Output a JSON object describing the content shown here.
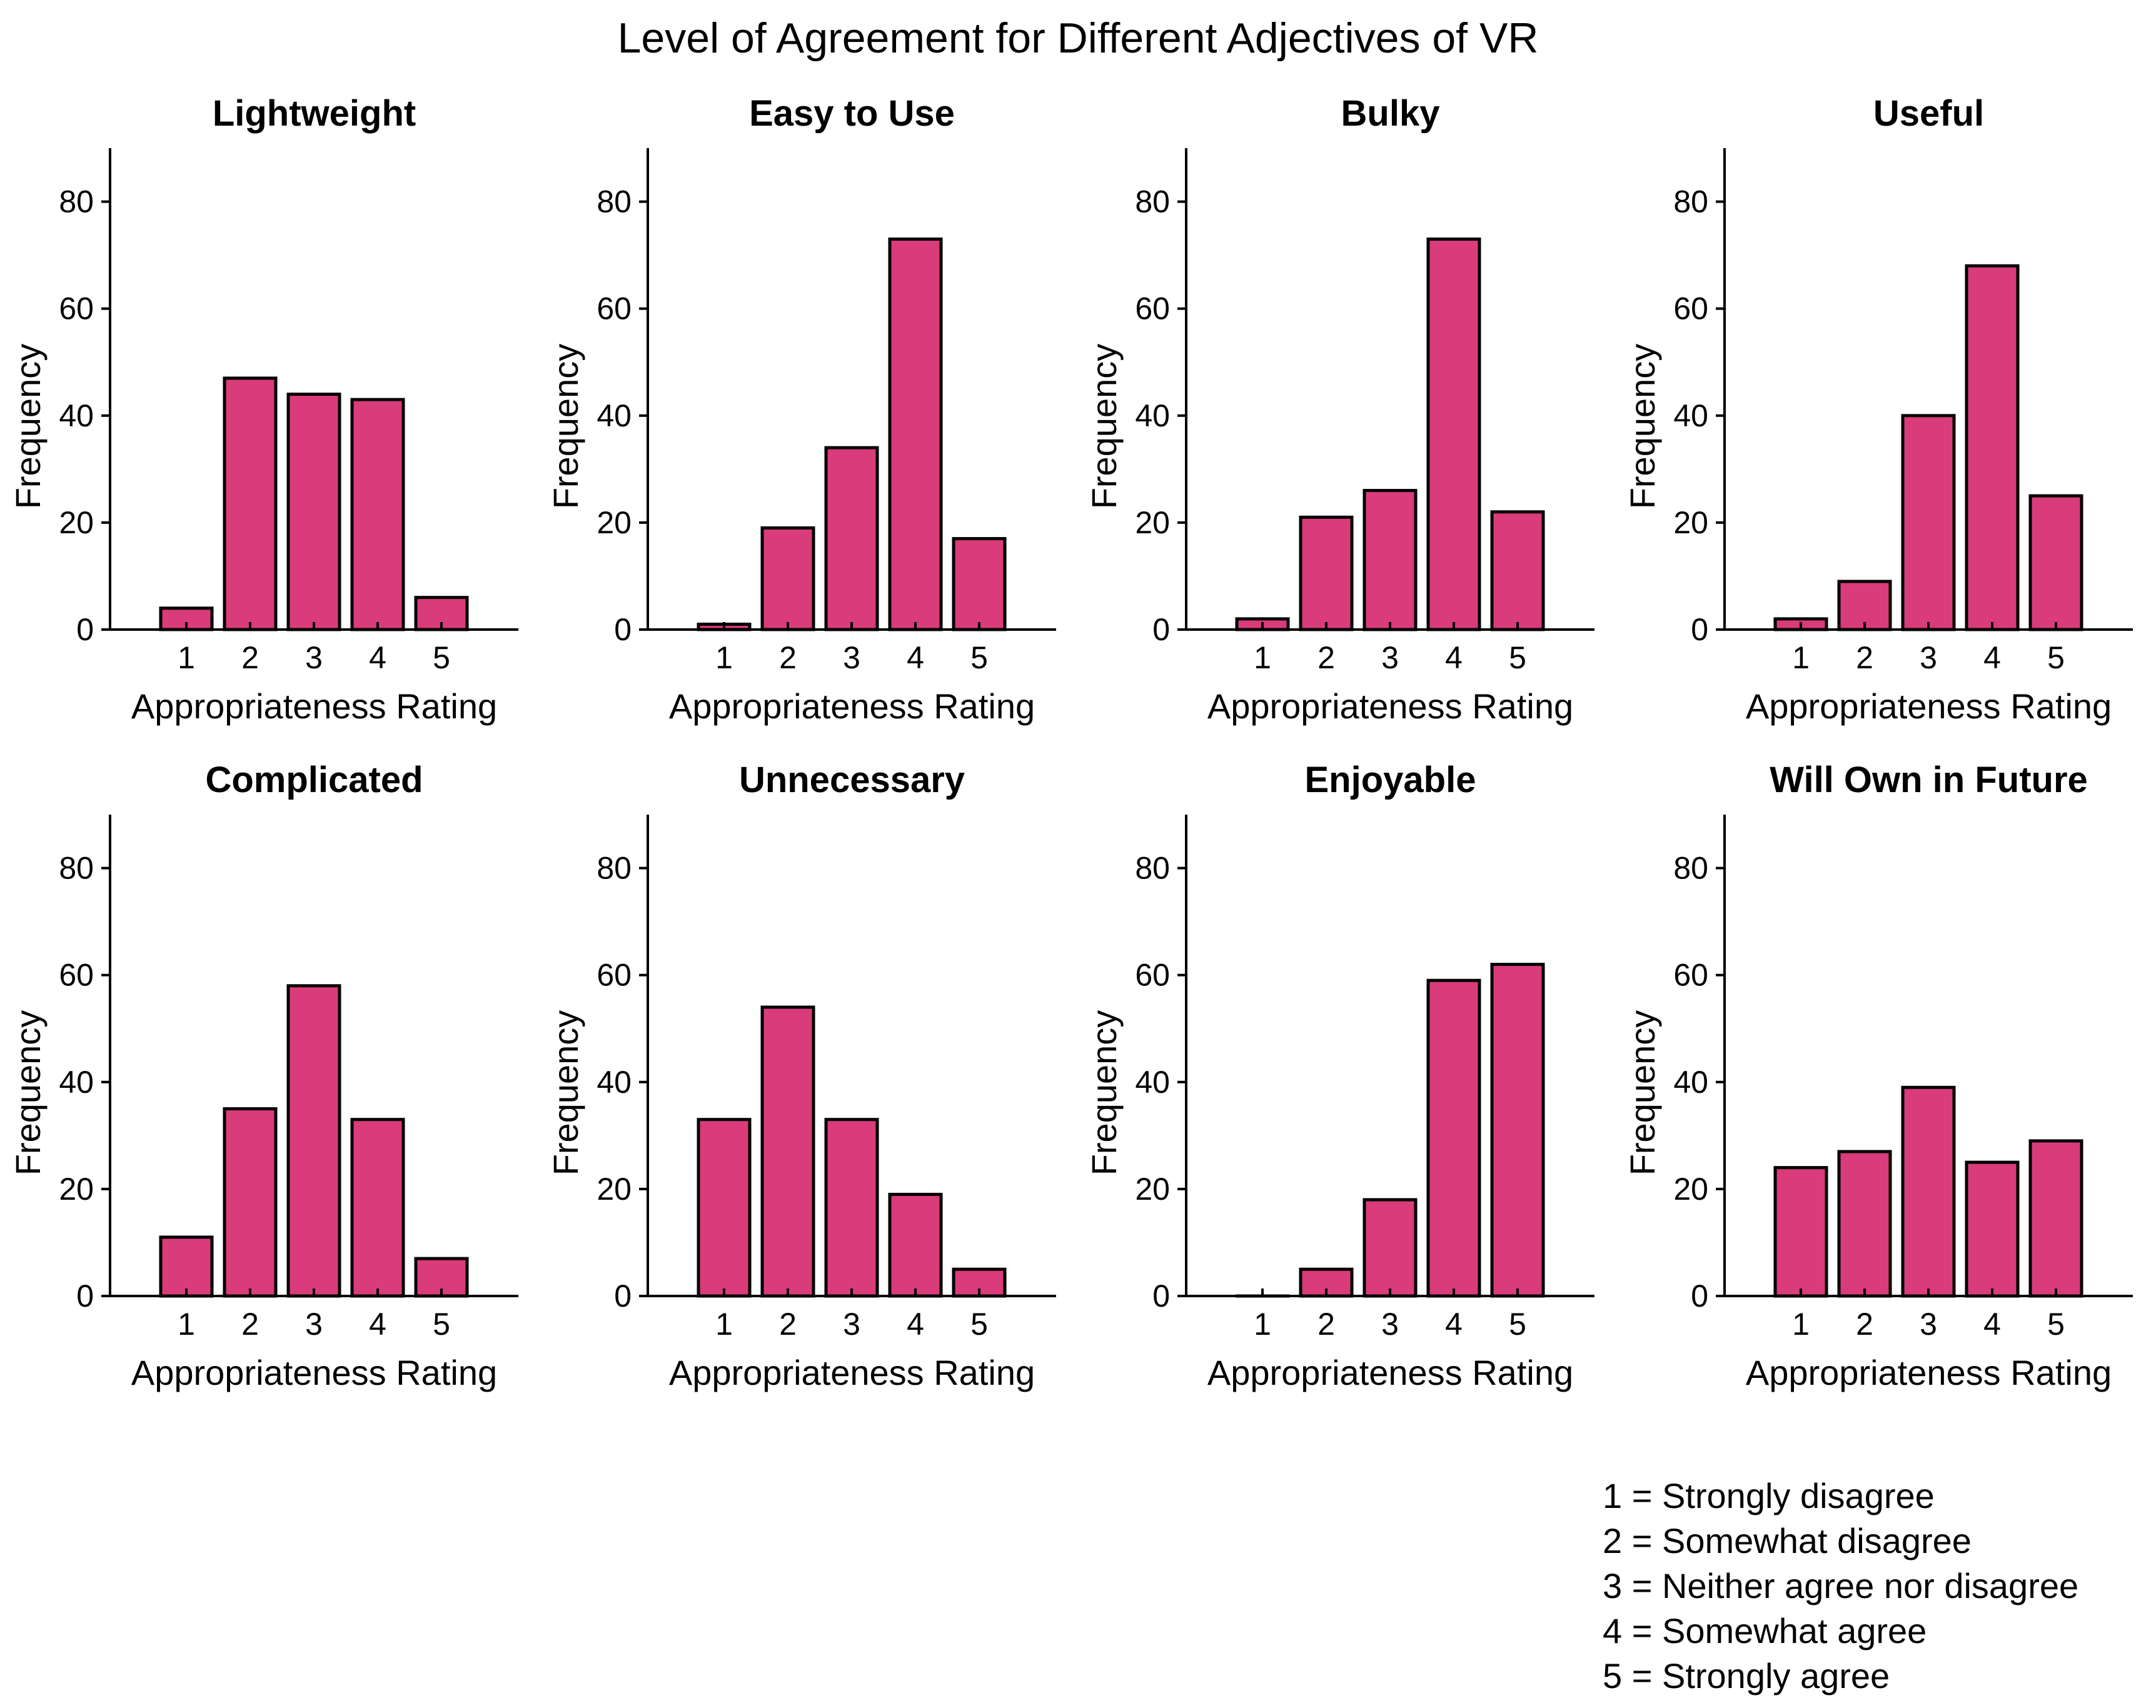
{
  "chart_data": {
    "type": "bar",
    "title": "Level of Agreement for Different Adjectives of VR",
    "bar_color": "#D93B7B",
    "edge_color": "#000000",
    "categories": [
      "1",
      "2",
      "3",
      "4",
      "5"
    ],
    "xlabel": "Appropriateness Rating",
    "ylabel": "Frequency",
    "ylim": [
      0,
      90
    ],
    "yticks": [
      0,
      20,
      40,
      60,
      80
    ],
    "panels": [
      {
        "title": "Lightweight",
        "values": [
          4,
          47,
          44,
          43,
          6
        ]
      },
      {
        "title": "Easy to Use",
        "values": [
          1,
          19,
          34,
          73,
          17
        ]
      },
      {
        "title": "Bulky",
        "values": [
          2,
          21,
          26,
          73,
          22
        ]
      },
      {
        "title": "Useful",
        "values": [
          2,
          9,
          40,
          68,
          25
        ]
      },
      {
        "title": "Complicated",
        "values": [
          11,
          35,
          58,
          33,
          7
        ]
      },
      {
        "title": "Unnecessary",
        "values": [
          33,
          54,
          33,
          19,
          5
        ]
      },
      {
        "title": "Enjoyable",
        "values": [
          0,
          5,
          18,
          59,
          62
        ]
      },
      {
        "title": "Will Own in Future",
        "values": [
          24,
          27,
          39,
          25,
          29
        ]
      }
    ],
    "legend": [
      "1 = Strongly disagree",
      "2 = Somewhat disagree",
      "3 = Neither agree nor disagree",
      "4 = Somewhat agree",
      "5 = Strongly agree"
    ]
  }
}
